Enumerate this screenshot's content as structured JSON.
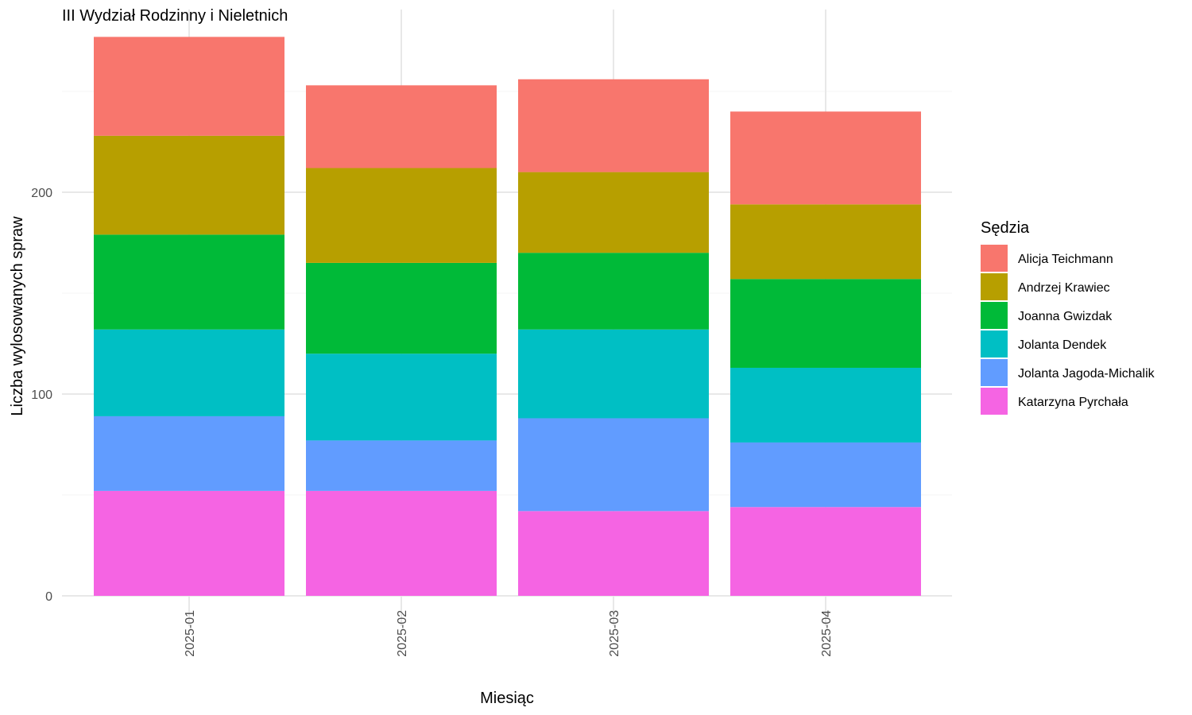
{
  "chart_data": {
    "type": "bar",
    "stacked": true,
    "title": "III Wydział Rodzinny i Nieletnich",
    "xlabel": "Miesiąc",
    "ylabel": "Liczba wylosowanych spraw",
    "ylim": [
      0,
      290
    ],
    "yticks": [
      0,
      100,
      200
    ],
    "grid": true,
    "legend_position": "right",
    "legend_title": "Sędzia",
    "categories": [
      "2025-01",
      "2025-02",
      "2025-03",
      "2025-04"
    ],
    "series": [
      {
        "name": "Alicja Teichmann",
        "color": "#F8766D",
        "values": [
          49,
          41,
          46,
          46
        ]
      },
      {
        "name": "Andrzej Krawiec",
        "color": "#B79F00",
        "values": [
          49,
          47,
          40,
          37
        ]
      },
      {
        "name": "Joanna Gwizdak",
        "color": "#00BA38",
        "values": [
          47,
          45,
          38,
          44
        ]
      },
      {
        "name": "Jolanta Dendek",
        "color": "#00BFC4",
        "values": [
          43,
          43,
          44,
          37
        ]
      },
      {
        "name": "Jolanta Jagoda-Michalik",
        "color": "#619CFF",
        "values": [
          37,
          25,
          46,
          32
        ]
      },
      {
        "name": "Katarzyna Pyrchała",
        "color": "#F564E3",
        "values": [
          52,
          52,
          42,
          44
        ]
      }
    ]
  }
}
